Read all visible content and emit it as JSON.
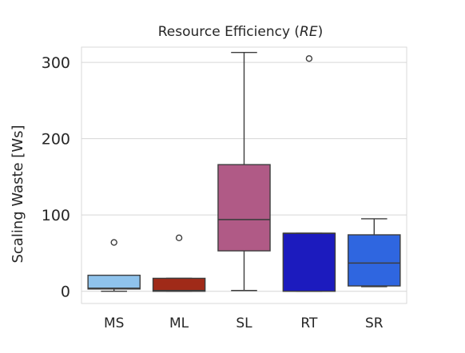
{
  "chart_data": {
    "type": "box",
    "title": "Resource Efficiency (",
    "title_italic": "RE",
    "title_suffix": ")",
    "xlabel": "",
    "ylabel": "Scaling Waste [Ws]",
    "ylim": [
      -16,
      320
    ],
    "yticks": [
      0,
      100,
      200,
      300
    ],
    "grid": true,
    "categories": [
      "MS",
      "ML",
      "SL",
      "RT",
      "SR"
    ],
    "boxes": [
      {
        "category": "MS",
        "color": "#8fc3ec",
        "whisker_low": 0,
        "q1": 3,
        "median": 4,
        "q3": 21,
        "whisker_high": 21,
        "outliers": [
          64
        ]
      },
      {
        "category": "ML",
        "color": "#a02a18",
        "whisker_low": 0,
        "q1": 0,
        "median": 1,
        "q3": 17,
        "whisker_high": 17,
        "outliers": [
          70
        ]
      },
      {
        "category": "SL",
        "color": "#b05a86",
        "whisker_low": 1,
        "q1": 53,
        "median": 94,
        "q3": 166,
        "whisker_high": 313,
        "outliers": []
      },
      {
        "category": "RT",
        "color": "#1c1bbe",
        "whisker_low": 0,
        "q1": 0,
        "median": 76,
        "q3": 76,
        "whisker_high": 76,
        "outliers": [
          305
        ]
      },
      {
        "category": "SR",
        "color": "#2f66e0",
        "whisker_low": 6,
        "q1": 7,
        "median": 37,
        "q3": 74,
        "whisker_high": 95,
        "outliers": []
      }
    ]
  }
}
